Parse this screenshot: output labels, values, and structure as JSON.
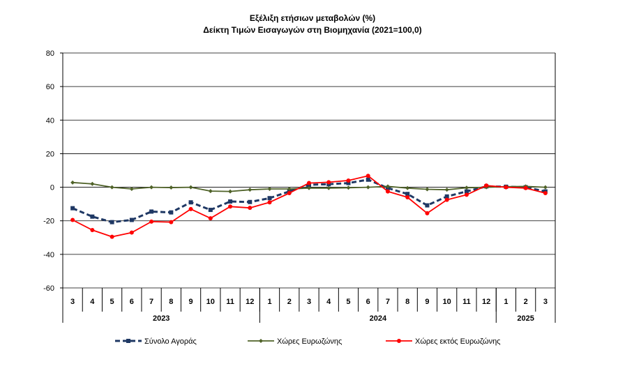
{
  "chart_data": {
    "type": "line",
    "title": "Εξέλιξη ετήσιων μεταβολών (%)",
    "subtitle": "Δείκτη Τιμών Εισαγωγών στη Βιομηχανία (2021=100,0)",
    "xlabel": "",
    "ylabel": "",
    "ylim": [
      -60,
      80
    ],
    "y_ticks": [
      80,
      60,
      40,
      20,
      0,
      -20,
      -40,
      -60
    ],
    "grid": true,
    "legend_position": "bottom",
    "categories": [
      "3",
      "4",
      "5",
      "6",
      "7",
      "8",
      "9",
      "10",
      "11",
      "12",
      "1",
      "2",
      "3",
      "4",
      "5",
      "6",
      "7",
      "8",
      "9",
      "10",
      "11",
      "12",
      "1",
      "2",
      "3"
    ],
    "year_groups": [
      {
        "label": "2023",
        "count": 10
      },
      {
        "label": "2024",
        "count": 12
      },
      {
        "label": "2025",
        "count": 3
      }
    ],
    "series": [
      {
        "name": "Σύνολο Αγοράς",
        "color": "#1f3864",
        "style": "dashed-square",
        "values": [
          -12.5,
          -17.5,
          -20.8,
          -19.5,
          -14.5,
          -15.0,
          -9.0,
          -13.5,
          -8.5,
          -8.8,
          -6.5,
          -2.5,
          1.5,
          1.8,
          2.5,
          4.5,
          -0.5,
          -4.0,
          -10.8,
          -5.5,
          -2.5,
          0.5,
          0.3,
          0.0,
          -2.5
        ]
      },
      {
        "name": "Χώρες Ευρωζώνης",
        "color": "#4f6228",
        "style": "solid-diamond",
        "values": [
          2.8,
          2.0,
          0.0,
          -1.0,
          0.0,
          -0.2,
          0.0,
          -2.3,
          -2.5,
          -1.5,
          -1.0,
          -1.0,
          -0.5,
          -0.5,
          -0.3,
          0.0,
          0.5,
          -0.5,
          -1.2,
          -1.5,
          -0.3,
          0.0,
          0.3,
          0.5,
          0.0
        ]
      },
      {
        "name": "Χώρες εκτός Ευρωζώνης",
        "color": "#ff0000",
        "style": "solid-circle",
        "values": [
          -19.5,
          -25.5,
          -29.5,
          -27.0,
          -20.5,
          -20.8,
          -13.0,
          -18.5,
          -11.5,
          -12.3,
          -9.0,
          -3.5,
          2.5,
          3.0,
          4.0,
          6.8,
          -2.5,
          -6.0,
          -15.5,
          -7.5,
          -4.5,
          1.0,
          0.0,
          -0.5,
          -3.5
        ]
      }
    ]
  }
}
